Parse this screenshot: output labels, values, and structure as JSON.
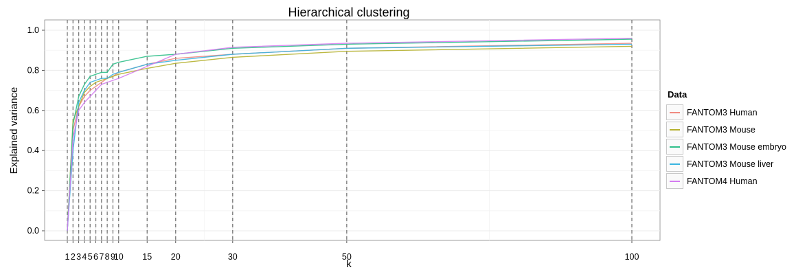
{
  "chart_data": {
    "type": "line",
    "title": "Hierarchical clustering",
    "xlabel": "k",
    "ylabel": "Explained variance",
    "xlim": [
      1,
      100
    ],
    "ylim": [
      0,
      1
    ],
    "x_ticks": [
      1,
      2,
      3,
      4,
      5,
      6,
      7,
      8,
      9,
      10,
      15,
      20,
      30,
      50,
      100
    ],
    "x_tick_labels": [
      "1",
      "2",
      "3",
      "4",
      "5",
      "6",
      "7",
      "8",
      "9",
      "10",
      "15",
      "20",
      "30",
      "50",
      "100"
    ],
    "y_ticks": [
      0.0,
      0.2,
      0.4,
      0.6,
      0.8,
      1.0
    ],
    "y_tick_labels": [
      "0.0",
      "0.2",
      "0.4",
      "0.6",
      "0.8",
      "1.0"
    ],
    "vlines": [
      1,
      2,
      3,
      4,
      5,
      6,
      7,
      8,
      9,
      10,
      15,
      20,
      30,
      50,
      100
    ],
    "grid": true,
    "legend_title": "Data",
    "legend_position": "right",
    "x": [
      1,
      2,
      3,
      4,
      5,
      6,
      7,
      8,
      9,
      10,
      15,
      20,
      30,
      50,
      100
    ],
    "series": [
      {
        "name": "FANTOM3 Human",
        "color": "#f08a80",
        "values": [
          0.0,
          0.5,
          0.62,
          0.67,
          0.7,
          0.72,
          0.74,
          0.76,
          0.77,
          0.79,
          0.83,
          0.86,
          0.88,
          0.91,
          0.935
        ]
      },
      {
        "name": "FANTOM3 Mouse",
        "color": "#b5b02e",
        "values": [
          0.0,
          0.55,
          0.62,
          0.69,
          0.72,
          0.74,
          0.75,
          0.76,
          0.77,
          0.78,
          0.81,
          0.835,
          0.865,
          0.895,
          0.92
        ]
      },
      {
        "name": "FANTOM3 Mouse embryo",
        "color": "#2fbf8a",
        "values": [
          0.0,
          0.53,
          0.67,
          0.73,
          0.77,
          0.78,
          0.79,
          0.79,
          0.83,
          0.84,
          0.87,
          0.88,
          0.91,
          0.93,
          0.955
        ]
      },
      {
        "name": "FANTOM3 Mouse liver",
        "color": "#3ab4e0",
        "values": [
          0.0,
          0.4,
          0.64,
          0.7,
          0.74,
          0.75,
          0.76,
          0.76,
          0.78,
          0.79,
          0.83,
          0.85,
          0.88,
          0.91,
          0.93
        ]
      },
      {
        "name": "FANTOM4 Human",
        "color": "#d47cf0",
        "values": [
          0.0,
          0.46,
          0.6,
          0.64,
          0.67,
          0.7,
          0.73,
          0.74,
          0.75,
          0.76,
          0.82,
          0.88,
          0.915,
          0.935,
          0.96
        ]
      }
    ]
  }
}
